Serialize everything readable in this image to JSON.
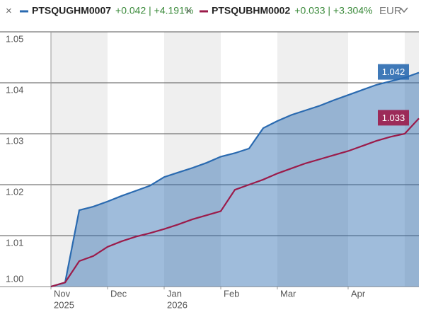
{
  "chart_data": {
    "type": "line",
    "currency": "EUR",
    "categories": [
      "Nov",
      null,
      null,
      null,
      "Dec",
      null,
      null,
      null,
      "Jan",
      null,
      null,
      null,
      "Feb",
      null,
      null,
      null,
      "Mar",
      null,
      null,
      null,
      null,
      "Apr",
      null,
      null,
      null,
      null,
      null
    ],
    "year_labels": [
      "2025",
      null,
      null,
      null,
      null,
      null,
      null,
      null,
      "2026",
      null,
      null,
      null,
      null,
      null,
      null,
      null,
      null,
      null,
      null,
      null,
      null,
      null,
      null,
      null,
      null,
      null,
      null
    ],
    "series": [
      {
        "name": "PTSQUGHM0007",
        "change": "+0.042 | +4.191%",
        "color": "#2a6ab0",
        "values": [
          1.0,
          1.0008,
          1.015,
          1.0157,
          1.0167,
          1.0178,
          1.0188,
          1.0198,
          1.0215,
          1.0224,
          1.0233,
          1.0243,
          1.0255,
          1.0262,
          1.0271,
          1.0311,
          1.0325,
          1.0337,
          1.0346,
          1.0355,
          1.0366,
          1.0376,
          1.0386,
          1.0396,
          1.0403,
          1.041,
          1.042
        ]
      },
      {
        "name": "PTSQUBHM0002",
        "change": "+0.033 | +3.304%",
        "color": "#9b1b4a",
        "values": [
          1.0,
          1.0008,
          1.005,
          1.006,
          1.0078,
          1.0089,
          1.0098,
          1.0105,
          1.0113,
          1.0122,
          1.0132,
          1.014,
          1.0148,
          1.019,
          1.02,
          1.021,
          1.0222,
          1.0232,
          1.0242,
          1.025,
          1.0258,
          1.0266,
          1.0276,
          1.0286,
          1.0294,
          1.03,
          1.033
        ]
      }
    ],
    "ylim": [
      1,
      1.05
    ],
    "yticks": [
      {
        "value": 1,
        "label": "1.00"
      },
      1.01,
      1.02,
      1.03,
      1.04,
      1.05
    ],
    "grid": true
  }
}
